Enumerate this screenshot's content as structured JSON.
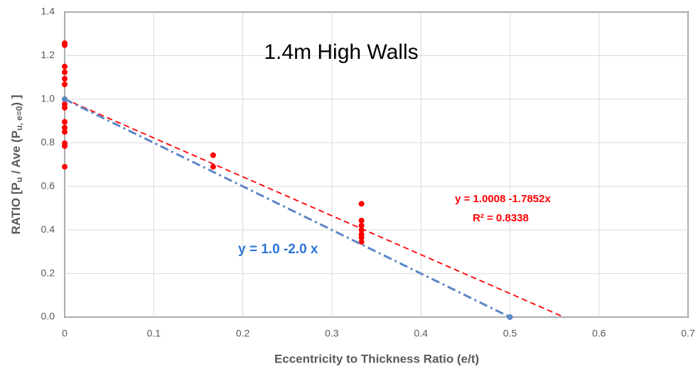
{
  "chart_data": {
    "type": "scatter",
    "title": "1.4m High Walls",
    "x_label": "Eccentricity to Thickness Ratio (e/t)",
    "y_label_parts": [
      "RATIO [P",
      "u",
      " / Ave (P",
      "u, e=0",
      ") ]"
    ],
    "annotations": [
      "y = 1.0008 -1.7852x",
      "R² = 0.8338",
      "y = 1.0 -2.0 x"
    ],
    "xlim": [
      0,
      0.7
    ],
    "ylim": [
      0,
      1.4
    ],
    "xticks": [
      0,
      0.1,
      0.2,
      0.3,
      0.4,
      0.5,
      0.6,
      0.7
    ],
    "yticks": [
      {
        "value": 0,
        "label": "0.0"
      },
      0.2,
      0.4,
      0.6,
      0.8,
      {
        "value": 1,
        "label": "1.0"
      },
      1.2,
      1.4
    ],
    "grid": true,
    "series": [
      {
        "mode": "markers",
        "color": "#ff0000",
        "x": [
          0,
          0,
          0,
          0,
          0,
          0,
          0,
          0,
          0,
          0,
          0,
          0,
          0,
          0,
          0,
          0.1667,
          0.1667,
          0.3333,
          0.3333,
          0.3333,
          0.3333,
          0.3333,
          0.3333,
          0.3333
        ],
        "values": [
          1.257,
          1.248,
          1.15,
          1.124,
          1.094,
          1.068,
          1.0,
          0.977,
          0.961,
          0.896,
          0.87,
          0.85,
          0.798,
          0.785,
          0.69,
          0.743,
          0.69,
          0.52,
          0.443,
          0.42,
          0.4,
          0.38,
          0.365,
          0.345
        ]
      },
      {
        "mode": "dashed-line",
        "color": "#ff0000",
        "x": [
          0,
          0.5606
        ],
        "values": [
          1.0008,
          0
        ]
      },
      {
        "mode": "dashdot-line",
        "color": "#5b86c5",
        "x": [
          0,
          0.5
        ],
        "values": [
          1,
          0
        ]
      },
      {
        "mode": "markers",
        "color": "#5b86c5",
        "x": [
          0,
          0.5
        ],
        "values": [
          1,
          0
        ]
      }
    ]
  }
}
